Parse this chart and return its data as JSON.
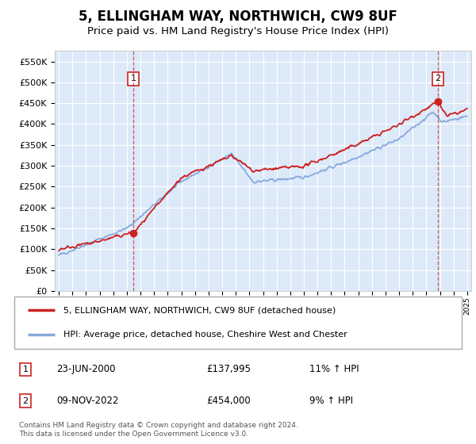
{
  "title": "5, ELLINGHAM WAY, NORTHWICH, CW9 8UF",
  "subtitle": "Price paid vs. HM Land Registry's House Price Index (HPI)",
  "ylabel_ticks": [
    0,
    50000,
    100000,
    150000,
    200000,
    250000,
    300000,
    350000,
    400000,
    450000,
    500000,
    550000
  ],
  "ylim": [
    0,
    575000
  ],
  "xlim_start": 1994.7,
  "xlim_end": 2025.3,
  "legend_red": "5, ELLINGHAM WAY, NORTHWICH, CW9 8UF (detached house)",
  "legend_blue": "HPI: Average price, detached house, Cheshire West and Chester",
  "sale1_date": "23-JUN-2000",
  "sale1_price": "£137,995",
  "sale1_hpi": "11% ↑ HPI",
  "sale1_year": 2000.48,
  "sale1_value": 137995,
  "sale2_date": "09-NOV-2022",
  "sale2_price": "£454,000",
  "sale2_hpi": "9% ↑ HPI",
  "sale2_year": 2022.86,
  "sale2_value": 454000,
  "footer": "Contains HM Land Registry data © Crown copyright and database right 2024.\nThis data is licensed under the Open Government Licence v3.0.",
  "plot_bg_color": "#dce9f8",
  "red_color": "#cc2222",
  "blue_color": "#88aadd",
  "title_fontsize": 12,
  "subtitle_fontsize": 9.5
}
